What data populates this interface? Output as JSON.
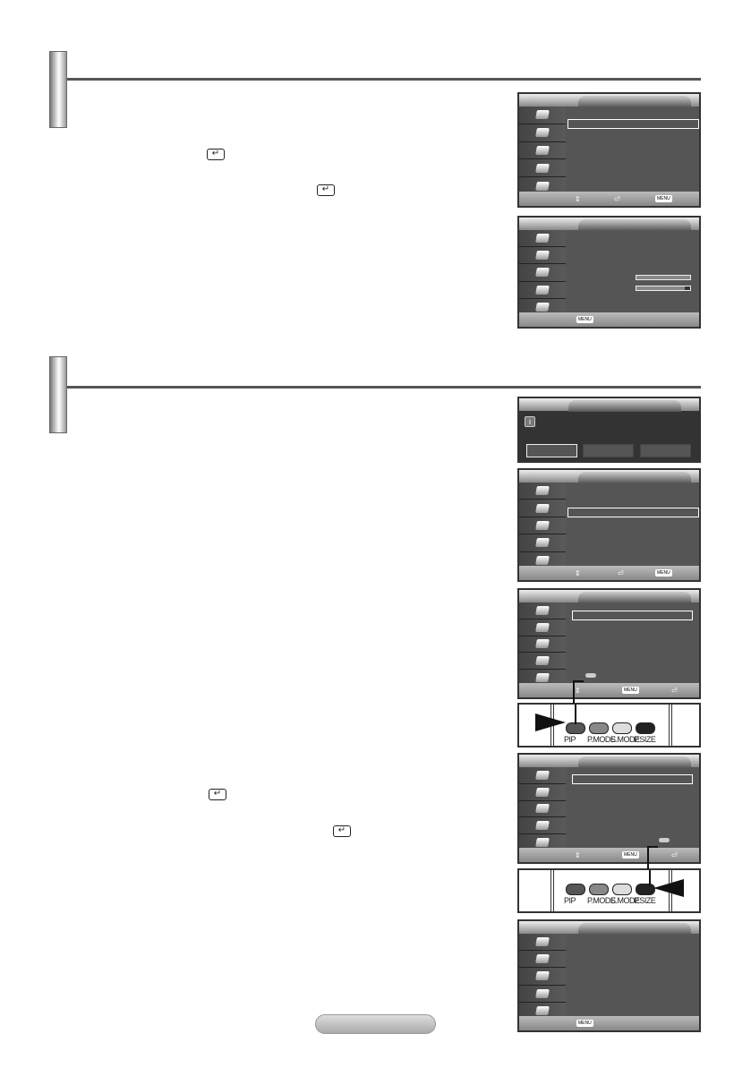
{
  "icons": {
    "enter": "enter-icon",
    "menu": "menu-button-icon",
    "updown": "up-down-icon",
    "info": "info-icon"
  },
  "screen_footer": {
    "menu_label": "MENU"
  },
  "remote": {
    "buttons": [
      {
        "label": "PIP",
        "color": "#555555"
      },
      {
        "label": "P.MODE",
        "color": "#888888"
      },
      {
        "label": "S.MODE",
        "color": "#dddddd"
      },
      {
        "label": "P.SIZE",
        "color": "#222222"
      }
    ]
  }
}
